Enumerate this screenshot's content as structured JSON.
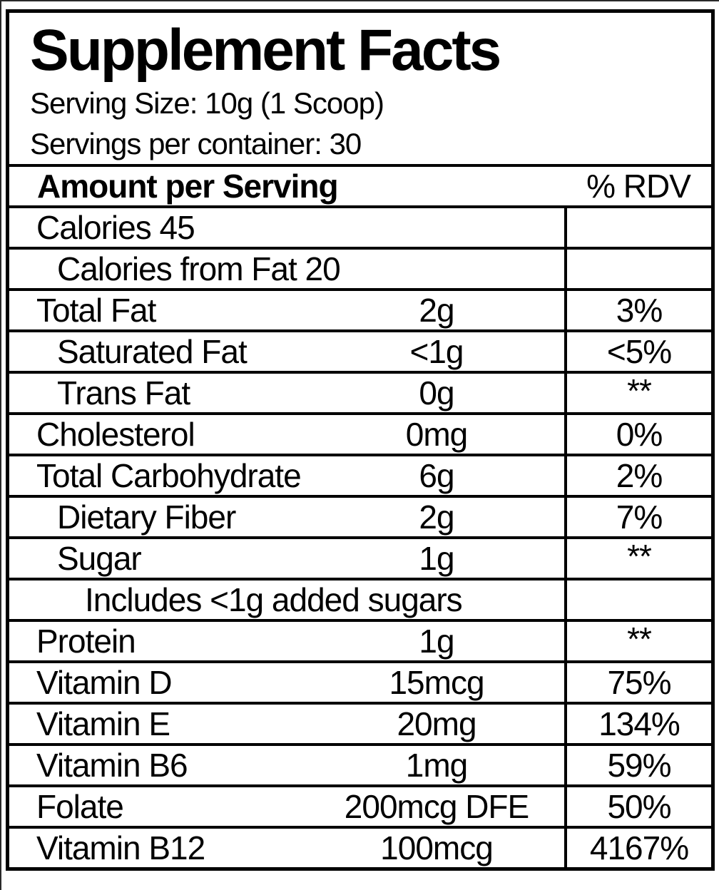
{
  "label": {
    "title": "Supplement Facts",
    "serving_size": "Serving Size: 10g (1 Scoop)",
    "servings_per_container": "Servings per container: 30"
  },
  "table": {
    "header": {
      "amount_label": "Amount per Serving",
      "rdv_label": "% RDV"
    },
    "rows": [
      {
        "name": "Calories 45",
        "indent": 0,
        "amount": "",
        "rdv": ""
      },
      {
        "name": "Calories from Fat 20",
        "indent": 1,
        "amount": "",
        "rdv": ""
      },
      {
        "name": "Total Fat",
        "indent": 0,
        "amount": "2g",
        "rdv": "3%"
      },
      {
        "name": "Saturated Fat",
        "indent": 1,
        "amount": "<1g",
        "rdv": "<5%"
      },
      {
        "name": "Trans Fat",
        "indent": 1,
        "amount": "0g",
        "rdv": "**"
      },
      {
        "name": "Cholesterol",
        "indent": 0,
        "amount": "0mg",
        "rdv": "0%"
      },
      {
        "name": "Total Carbohydrate",
        "indent": 0,
        "amount": "6g",
        "rdv": "2%"
      },
      {
        "name": "Dietary Fiber",
        "indent": 1,
        "amount": "2g",
        "rdv": "7%"
      },
      {
        "name": "Sugar",
        "indent": 1,
        "amount": "1g",
        "rdv": "**"
      },
      {
        "name": "Includes <1g added sugars",
        "indent": 2,
        "amount": "",
        "rdv": ""
      },
      {
        "name": "Protein",
        "indent": 0,
        "amount": "1g",
        "rdv": "**"
      },
      {
        "name": "Vitamin D",
        "indent": 0,
        "amount": "15mcg",
        "rdv": "75%"
      },
      {
        "name": "Vitamin E",
        "indent": 0,
        "amount": "20mg",
        "rdv": "134%"
      },
      {
        "name": "Vitamin B6",
        "indent": 0,
        "amount": "1mg",
        "rdv": "59%"
      },
      {
        "name": "Folate",
        "indent": 0,
        "amount": "200mcg DFE",
        "rdv": "50%"
      },
      {
        "name": "Vitamin B12",
        "indent": 0,
        "amount": "100mcg",
        "rdv": "4167%"
      }
    ]
  },
  "colors": {
    "text": "#000000",
    "background": "#ffffff",
    "border": "#000000"
  }
}
